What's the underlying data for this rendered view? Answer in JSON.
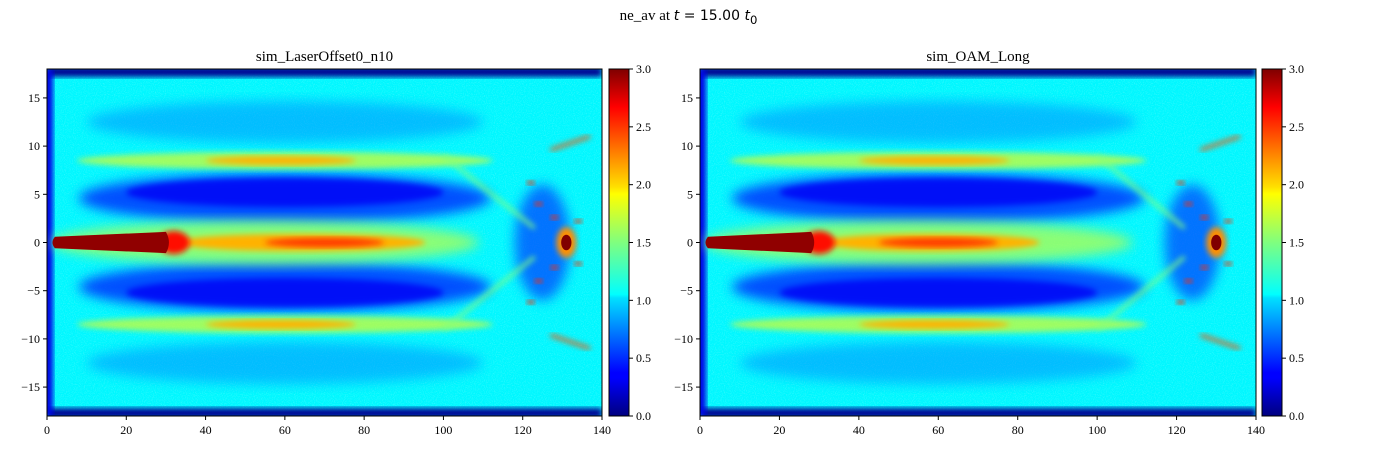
{
  "figure": {
    "suptitle_prefix": "ne_av at ",
    "suptitle_var": "t",
    "suptitle_eq": " = 15.00 ",
    "suptitle_unit": "t",
    "suptitle_sub": "0"
  },
  "chart_data": [
    {
      "type": "heatmap",
      "title": "sim_LaserOffset0_n10",
      "xlabel": "",
      "ylabel": "",
      "xlim": [
        0,
        140
      ],
      "ylim": [
        -18,
        18
      ],
      "xticks": [
        0,
        20,
        40,
        60,
        80,
        100,
        120,
        140
      ],
      "yticks": [
        -15,
        -10,
        -5,
        0,
        5,
        10,
        15
      ],
      "colormap": "jet",
      "clim": [
        0,
        3
      ],
      "colorbar_ticks": [
        "0.0",
        "0.5",
        "1.0",
        "1.5",
        "2.0",
        "2.5",
        "3.0"
      ],
      "features": {
        "background_level": 1.1,
        "edge_band_y": 17.3,
        "axis_core_end_x": 30,
        "axis_filament_end_x": 88,
        "side_band_y": 8.5,
        "side_band_x": [
          40,
          78
        ],
        "front_x": 131
      }
    },
    {
      "type": "heatmap",
      "title": "sim_OAM_Long",
      "xlabel": "",
      "ylabel": "",
      "xlim": [
        0,
        140
      ],
      "ylim": [
        -18,
        18
      ],
      "xticks": [
        0,
        20,
        40,
        60,
        80,
        100,
        120,
        140
      ],
      "yticks": [
        -15,
        -10,
        -5,
        0,
        5,
        10,
        15
      ],
      "colormap": "jet",
      "clim": [
        0,
        3
      ],
      "colorbar_ticks": [
        "0.0",
        "0.5",
        "1.0",
        "1.5",
        "2.0",
        "2.5",
        "3.0"
      ],
      "features": {
        "background_level": 1.1,
        "edge_band_y": 17.3,
        "axis_core_end_x": 28,
        "axis_filament_end_x": 78,
        "side_band_y": 8.5,
        "side_band_x": [
          40,
          78
        ],
        "front_x": 130
      }
    }
  ]
}
